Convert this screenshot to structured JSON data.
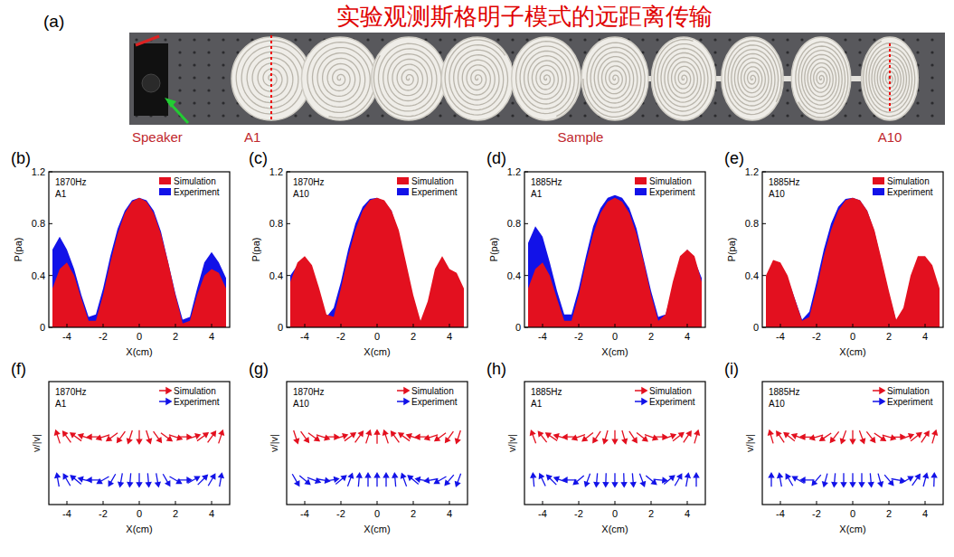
{
  "header": {
    "title": "实验观测斯格明子模式的远距离传输"
  },
  "photo": {
    "label": "(a)",
    "speaker": "Speaker",
    "start": "A1",
    "sample": "Sample",
    "end": "A10"
  },
  "chart_data": [
    {
      "type": "area",
      "label": "(b)",
      "annotations": [
        "1870Hz",
        "A1"
      ],
      "x_label": "X(cm)",
      "y_label": "P(pa)",
      "x": [
        -4.8,
        -4.4,
        -4,
        -3.6,
        -3.2,
        -2.8,
        -2.4,
        -2,
        -1.6,
        -1.2,
        -0.8,
        -0.4,
        0,
        0.4,
        0.8,
        1.2,
        1.6,
        2,
        2.4,
        2.8,
        3.2,
        3.6,
        4,
        4.4,
        4.8
      ],
      "xlim": [
        -5,
        5
      ],
      "ylim": [
        0,
        1.2
      ],
      "xticks": [
        -4,
        -2,
        0,
        2,
        4
      ],
      "yticks": [
        0,
        0.4,
        0.8,
        1.2
      ],
      "legend": "upper right",
      "series": [
        {
          "name": "Simulation",
          "color": "#e3101f",
          "values": [
            0.3,
            0.45,
            0.5,
            0.4,
            0.22,
            0.05,
            0.05,
            0.25,
            0.5,
            0.72,
            0.88,
            0.97,
            1.0,
            0.97,
            0.88,
            0.72,
            0.5,
            0.25,
            0.03,
            0.05,
            0.25,
            0.4,
            0.45,
            0.42,
            0.3
          ]
        },
        {
          "name": "Experiment",
          "color": "#1212e8",
          "values": [
            0.6,
            0.7,
            0.6,
            0.45,
            0.25,
            0.08,
            0.1,
            0.3,
            0.55,
            0.76,
            0.9,
            0.98,
            1.0,
            0.98,
            0.9,
            0.74,
            0.5,
            0.26,
            0.06,
            0.08,
            0.3,
            0.5,
            0.58,
            0.5,
            0.38
          ]
        }
      ]
    },
    {
      "type": "area",
      "label": "(c)",
      "annotations": [
        "1870Hz",
        "A10"
      ],
      "x_label": "X(cm)",
      "y_label": "P(pa)",
      "x": [
        -4.8,
        -4.4,
        -4,
        -3.6,
        -3.2,
        -2.8,
        -2.4,
        -2,
        -1.6,
        -1.2,
        -0.8,
        -0.4,
        0,
        0.4,
        0.8,
        1.2,
        1.6,
        2,
        2.4,
        2.8,
        3.2,
        3.6,
        4,
        4.4,
        4.8
      ],
      "xlim": [
        -5,
        5
      ],
      "ylim": [
        0,
        1.2
      ],
      "xticks": [
        -4,
        -2,
        0,
        2,
        4
      ],
      "yticks": [
        0,
        0.4,
        0.8,
        1.2
      ],
      "legend": "upper right",
      "series": [
        {
          "name": "Simulation",
          "color": "#e3101f",
          "values": [
            0.35,
            0.5,
            0.55,
            0.48,
            0.3,
            0.1,
            0.08,
            0.3,
            0.55,
            0.75,
            0.9,
            0.98,
            1.0,
            0.98,
            0.9,
            0.75,
            0.5,
            0.25,
            0.05,
            0.2,
            0.45,
            0.55,
            0.45,
            0.42,
            0.3
          ]
        },
        {
          "name": "Experiment",
          "color": "#1212e8",
          "values": [
            0.4,
            0.48,
            0.5,
            0.42,
            0.25,
            0.08,
            0.15,
            0.35,
            0.6,
            0.8,
            0.93,
            0.99,
            1.0,
            0.97,
            0.9,
            0.72,
            0.48,
            0.22,
            0.04,
            0.1,
            0.3,
            0.4,
            0.4,
            0.35,
            0.25
          ]
        }
      ]
    },
    {
      "type": "area",
      "label": "(d)",
      "annotations": [
        "1885Hz",
        "A1"
      ],
      "x_label": "X(cm)",
      "y_label": "P(pa)",
      "x": [
        -4.8,
        -4.4,
        -4,
        -3.6,
        -3.2,
        -2.8,
        -2.4,
        -2,
        -1.6,
        -1.2,
        -0.8,
        -0.4,
        0,
        0.4,
        0.8,
        1.2,
        1.6,
        2,
        2.4,
        2.8,
        3.2,
        3.6,
        4,
        4.4,
        4.8
      ],
      "xlim": [
        -5,
        5
      ],
      "ylim": [
        0,
        1.2
      ],
      "xticks": [
        -4,
        -2,
        0,
        2,
        4
      ],
      "yticks": [
        0,
        0.4,
        0.8,
        1.2
      ],
      "legend": "upper right",
      "series": [
        {
          "name": "Simulation",
          "color": "#e3101f",
          "values": [
            0.3,
            0.45,
            0.5,
            0.4,
            0.22,
            0.05,
            0.05,
            0.25,
            0.5,
            0.72,
            0.88,
            0.97,
            1.0,
            0.97,
            0.88,
            0.72,
            0.5,
            0.25,
            0.05,
            0.1,
            0.35,
            0.55,
            0.6,
            0.55,
            0.35
          ]
        },
        {
          "name": "Experiment",
          "color": "#1212e8",
          "values": [
            0.65,
            0.78,
            0.7,
            0.5,
            0.28,
            0.1,
            0.1,
            0.3,
            0.55,
            0.78,
            0.92,
            1.0,
            1.02,
            1.0,
            0.92,
            0.76,
            0.52,
            0.28,
            0.08,
            0.1,
            0.3,
            0.5,
            0.6,
            0.52,
            0.38
          ]
        }
      ]
    },
    {
      "type": "area",
      "label": "(e)",
      "annotations": [
        "1885Hz",
        "A10"
      ],
      "x_label": "X(cm)",
      "y_label": "P(pa)",
      "x": [
        -4.8,
        -4.4,
        -4,
        -3.6,
        -3.2,
        -2.8,
        -2.4,
        -2,
        -1.6,
        -1.2,
        -0.8,
        -0.4,
        0,
        0.4,
        0.8,
        1.2,
        1.6,
        2,
        2.4,
        2.8,
        3.2,
        3.6,
        4,
        4.4,
        4.8
      ],
      "xlim": [
        -5,
        5
      ],
      "ylim": [
        0,
        1.2
      ],
      "xticks": [
        -4,
        -2,
        0,
        2,
        4
      ],
      "yticks": [
        0,
        0.4,
        0.8,
        1.2
      ],
      "legend": "upper right",
      "series": [
        {
          "name": "Simulation",
          "color": "#e3101f",
          "values": [
            0.4,
            0.52,
            0.5,
            0.4,
            0.22,
            0.05,
            0.08,
            0.3,
            0.55,
            0.75,
            0.9,
            0.98,
            1.0,
            0.98,
            0.9,
            0.75,
            0.52,
            0.28,
            0.06,
            0.15,
            0.4,
            0.55,
            0.55,
            0.48,
            0.3
          ]
        },
        {
          "name": "Experiment",
          "color": "#1212e8",
          "values": [
            0.35,
            0.5,
            0.48,
            0.38,
            0.22,
            0.06,
            0.12,
            0.35,
            0.6,
            0.8,
            0.93,
            0.99,
            1.0,
            0.98,
            0.9,
            0.74,
            0.5,
            0.26,
            0.05,
            0.1,
            0.3,
            0.45,
            0.48,
            0.42,
            0.28
          ]
        }
      ]
    },
    {
      "type": "quiver",
      "label": "(f)",
      "annotations": [
        "1870Hz",
        "A1"
      ],
      "x_label": "X(cm)",
      "y_label": "v/|v|",
      "x": [
        -4.5,
        -4,
        -3.5,
        -3,
        -2.5,
        -2,
        -1.5,
        -1,
        -0.5,
        0,
        0.5,
        1,
        1.5,
        2,
        2.5,
        3,
        3.5,
        4,
        4.5
      ],
      "xlim": [
        -5,
        5
      ],
      "xticks": [
        -4,
        -2,
        0,
        2,
        4
      ],
      "tick_labels": "x",
      "legend": "upper right",
      "series": [
        {
          "name": "Simulation",
          "color": "#e3101f",
          "values": [
            108,
            126,
            144,
            162,
            180,
            -162,
            -144,
            -126,
            -108,
            -90,
            -72,
            -54,
            -36,
            -18,
            0,
            18,
            36,
            54,
            72
          ]
        },
        {
          "name": "Experiment",
          "color": "#1212e8",
          "values": [
            100,
            120,
            140,
            165,
            180,
            -150,
            -120,
            -100,
            -95,
            -90,
            -85,
            -80,
            -60,
            -30,
            0,
            30,
            45,
            60,
            80
          ]
        }
      ]
    },
    {
      "type": "quiver",
      "label": "(g)",
      "annotations": [
        "1870Hz",
        "A10"
      ],
      "x_label": "X(cm)",
      "y_label": "v/|v|",
      "x": [
        -4.5,
        -4,
        -3.5,
        -3,
        -2.5,
        -2,
        -1.5,
        -1,
        -0.5,
        0,
        0.5,
        1,
        1.5,
        2,
        2.5,
        3,
        3.5,
        4,
        4.5
      ],
      "xlim": [
        -5,
        5
      ],
      "xticks": [
        -4,
        -2,
        0,
        2,
        4
      ],
      "tick_labels": "x",
      "legend": "upper right",
      "series": [
        {
          "name": "Simulation",
          "color": "#e3101f",
          "values": [
            -72,
            -54,
            -36,
            -18,
            0,
            18,
            36,
            54,
            72,
            90,
            108,
            126,
            144,
            162,
            180,
            -162,
            -144,
            -126,
            -108
          ]
        },
        {
          "name": "Experiment",
          "color": "#1212e8",
          "values": [
            -60,
            -40,
            -20,
            -10,
            10,
            40,
            70,
            85,
            90,
            90,
            90,
            95,
            110,
            140,
            170,
            -170,
            -150,
            -130,
            -110
          ]
        }
      ]
    },
    {
      "type": "quiver",
      "label": "(h)",
      "annotations": [
        "1885Hz",
        "A1"
      ],
      "x_label": "X(cm)",
      "y_label": "v/|v|",
      "x": [
        -4.5,
        -4,
        -3.5,
        -3,
        -2.5,
        -2,
        -1.5,
        -1,
        -0.5,
        0,
        0.5,
        1,
        1.5,
        2,
        2.5,
        3,
        3.5,
        4,
        4.5
      ],
      "xlim": [
        -5,
        5
      ],
      "xticks": [
        -4,
        -2,
        0,
        2,
        4
      ],
      "tick_labels": "x",
      "legend": "upper right",
      "series": [
        {
          "name": "Simulation",
          "color": "#e3101f",
          "values": [
            110,
            128,
            146,
            164,
            180,
            -160,
            -142,
            -124,
            -106,
            -90,
            -74,
            -56,
            -38,
            -20,
            0,
            20,
            38,
            56,
            74
          ]
        },
        {
          "name": "Experiment",
          "color": "#1212e8",
          "values": [
            95,
            115,
            135,
            160,
            180,
            -140,
            -110,
            -95,
            -92,
            -90,
            -88,
            -85,
            -70,
            -40,
            -5,
            40,
            60,
            80,
            90
          ]
        }
      ]
    },
    {
      "type": "quiver",
      "label": "(i)",
      "annotations": [
        "1885Hz",
        "A10"
      ],
      "x_label": "X(cm)",
      "y_label": "v/|v|",
      "x": [
        -4.5,
        -4,
        -3.5,
        -3,
        -2.5,
        -2,
        -1.5,
        -1,
        -0.5,
        0,
        0.5,
        1,
        1.5,
        2,
        2.5,
        3,
        3.5,
        4,
        4.5
      ],
      "xlim": [
        -5,
        5
      ],
      "xticks": [
        -4,
        -2,
        0,
        2,
        4
      ],
      "tick_labels": "x",
      "legend": "upper right",
      "series": [
        {
          "name": "Simulation",
          "color": "#e3101f",
          "values": [
            106,
            124,
            142,
            160,
            178,
            -164,
            -146,
            -128,
            -110,
            -90,
            -70,
            -52,
            -34,
            -16,
            2,
            20,
            38,
            56,
            74
          ]
        },
        {
          "name": "Experiment",
          "color": "#1212e8",
          "values": [
            90,
            100,
            120,
            150,
            180,
            -130,
            -105,
            -95,
            -90,
            -90,
            -90,
            -85,
            -75,
            -50,
            -10,
            30,
            55,
            75,
            88
          ]
        }
      ]
    }
  ]
}
